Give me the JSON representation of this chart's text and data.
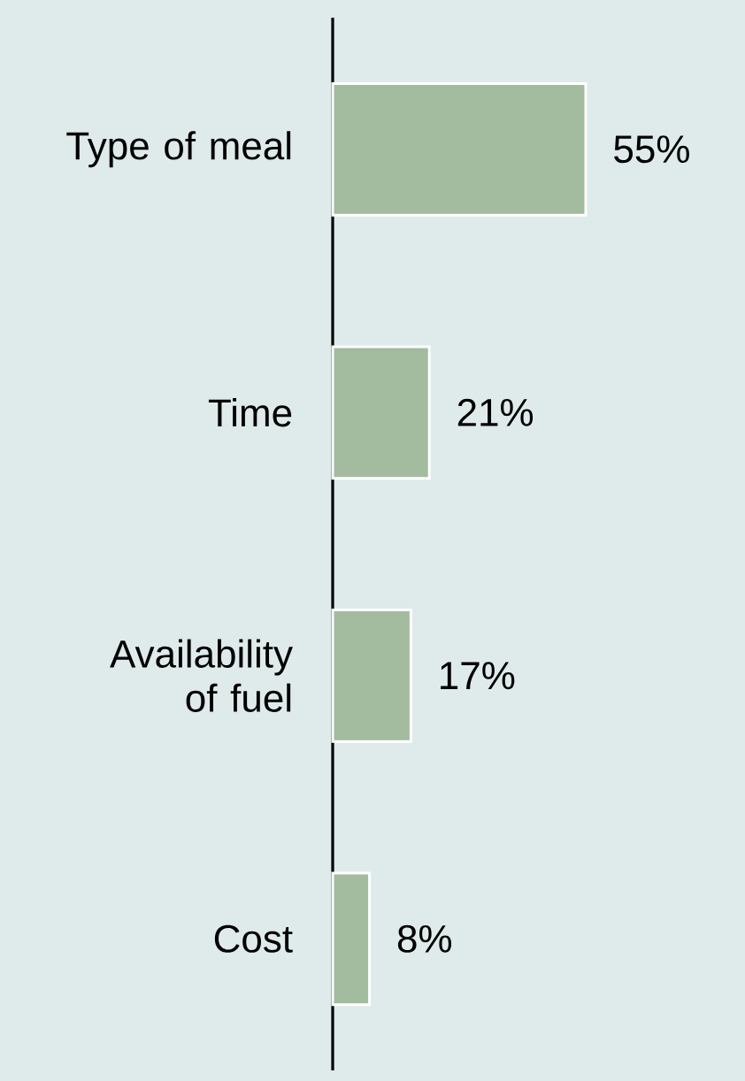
{
  "chart_data": {
    "type": "bar",
    "orientation": "horizontal",
    "categories": [
      "Type of meal",
      "Time",
      "Availability of fuel",
      "Cost"
    ],
    "values": [
      55,
      21,
      17,
      8
    ],
    "value_labels": [
      "55%",
      "21%",
      "17%",
      "8%"
    ],
    "color": "#a3bb9f"
  }
}
